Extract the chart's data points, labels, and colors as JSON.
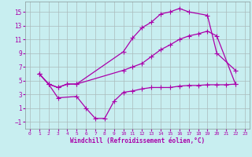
{
  "background_color": "#c8eef0",
  "grid_color": "#aabbbb",
  "line_color": "#aa00aa",
  "marker": "+",
  "markersize": 4,
  "linewidth": 0.9,
  "xlabel": "Windchill (Refroidissement éolien,°C)",
  "xlim": [
    -0.5,
    23.5
  ],
  "ylim": [
    -2,
    16.5
  ],
  "xticks": [
    0,
    1,
    2,
    3,
    4,
    5,
    6,
    7,
    8,
    9,
    10,
    11,
    12,
    13,
    14,
    15,
    16,
    17,
    18,
    19,
    20,
    21,
    22,
    23
  ],
  "yticks": [
    -1,
    1,
    3,
    5,
    7,
    9,
    11,
    13,
    15
  ],
  "series": [
    {
      "x": [
        1,
        2,
        3,
        4,
        5,
        10,
        11,
        12,
        13,
        14,
        15,
        16,
        17,
        19,
        20,
        22
      ],
      "y": [
        6.0,
        4.5,
        4.0,
        4.5,
        4.5,
        9.2,
        11.2,
        12.7,
        13.5,
        14.7,
        15.0,
        15.5,
        15.0,
        14.5,
        9.0,
        6.5
      ]
    },
    {
      "x": [
        1,
        2,
        3,
        4,
        5,
        10,
        11,
        12,
        13,
        14,
        15,
        16,
        17,
        18,
        19,
        20,
        22
      ],
      "y": [
        6.0,
        4.5,
        4.0,
        4.5,
        4.5,
        6.5,
        7.0,
        7.5,
        8.5,
        9.5,
        10.2,
        11.0,
        11.5,
        11.8,
        12.2,
        11.5,
        4.5
      ]
    },
    {
      "x": [
        1,
        2,
        3,
        5,
        6,
        7,
        8,
        9,
        10,
        11,
        12,
        13,
        14,
        15,
        16,
        17,
        18,
        19,
        20,
        21,
        22
      ],
      "y": [
        6.0,
        4.5,
        2.5,
        2.7,
        1.0,
        -0.5,
        -0.5,
        2.0,
        3.3,
        3.5,
        3.8,
        4.0,
        4.0,
        4.0,
        4.2,
        4.3,
        4.3,
        4.4,
        4.4,
        4.4,
        4.5
      ]
    }
  ]
}
